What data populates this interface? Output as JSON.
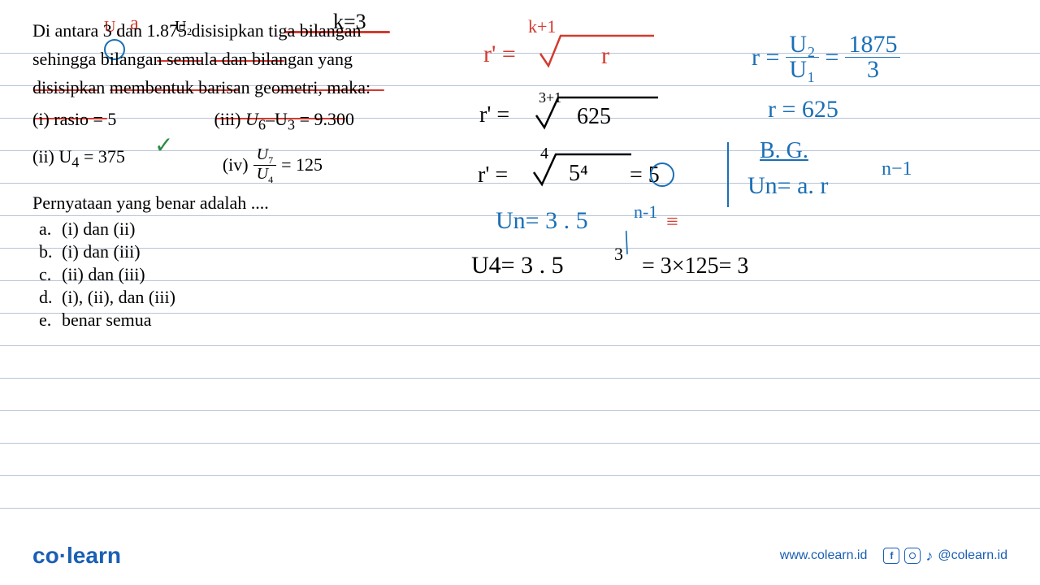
{
  "notebook": {
    "line_color": "#b8c4d8",
    "line_positions": [
      65,
      105,
      145,
      185,
      225,
      265,
      305,
      345,
      385,
      425,
      465,
      505,
      545,
      585,
      625
    ]
  },
  "problem": {
    "line1": "Di antara 3 dan 1.875 disisipkan tiga bilangan",
    "line2": "sehingga bilangan semula dan bilangan yang",
    "line3": "disisipkan membentuk barisan geometri, maka:",
    "stmt_i": "(i) rasio = 5",
    "stmt_iii_a": "(iii) ",
    "stmt_iii_b": "U",
    "stmt_iii_c": "6",
    "stmt_iii_d": "–U",
    "stmt_iii_e": "3",
    "stmt_iii_f": " = 9.300",
    "stmt_ii_a": "(ii) U",
    "stmt_ii_b": "4",
    "stmt_ii_c": " = 375",
    "stmt_iv_a": "(iv) ",
    "stmt_iv_num_a": "U",
    "stmt_iv_num_b": "7",
    "stmt_iv_den_a": "U",
    "stmt_iv_den_b": "4",
    "stmt_iv_eq": " = 125",
    "question": "Pernyataan yang benar adalah ....",
    "opt_a": "(i) dan (ii)",
    "opt_b": "(i) dan (iii)",
    "opt_c": "(ii) dan (iii)",
    "opt_d": "(i), (ii), dan (iii)",
    "opt_e": "benar semua"
  },
  "annotations": {
    "u1": "U₁",
    "a": "a",
    "u2": "U₂",
    "k3": "k=3",
    "kp1": "k+1",
    "rprime1": "r' =",
    "root_r": "r",
    "rprime2": "r' =",
    "root_625": "625",
    "root_exp1": "3+1",
    "rprime3": "r' =",
    "root_4": "4",
    "root_54": "5⁴",
    "eq5": "= 5",
    "un_formula": "Un= 3 . 5",
    "un_exp": "n-1",
    "u4_calc": "U4= 3 . 5",
    "u4_exp": "3",
    "u4_result": "= 3×125= 3",
    "r_eq": "r =",
    "frac_u2": "U₂",
    "frac_u1": "U₁",
    "frac_1875": "1875",
    "frac_3": "3",
    "r_625": "r = 625",
    "bg": "B. G.",
    "un_ar": "Un= a. r",
    "nm1": "n−1"
  },
  "colors": {
    "red": "#d43a2f",
    "blue": "#1a6fb5",
    "green": "#2a8a3f",
    "brand": "#1a5fb4"
  },
  "footer": {
    "logo_co": "co",
    "logo_learn": "learn",
    "url": "www.colearn.id",
    "handle": "@colearn.id"
  }
}
